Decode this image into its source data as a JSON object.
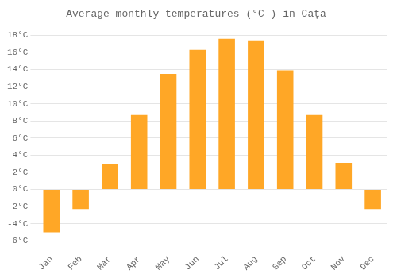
{
  "chart_data": {
    "type": "bar",
    "title": "Average monthly temperatures (°C ) in Cața",
    "categories": [
      "Jan",
      "Feb",
      "Mar",
      "Apr",
      "May",
      "Jun",
      "Jul",
      "Aug",
      "Sep",
      "Oct",
      "Nov",
      "Dec"
    ],
    "values": [
      -5.0,
      -2.3,
      3.0,
      8.7,
      13.5,
      16.3,
      17.6,
      17.4,
      13.9,
      8.7,
      3.1,
      -2.3
    ],
    "color": "#FFA726",
    "ylim": [
      -6.5,
      19.0
    ],
    "yticks": [
      {
        "value": -6,
        "label": "-6°C"
      },
      {
        "value": -4,
        "label": "-4°C"
      },
      {
        "value": -2,
        "label": "-2°C"
      },
      {
        "value": 0,
        "label": "0°C"
      },
      {
        "value": 2,
        "label": "2°C"
      },
      {
        "value": 4,
        "label": "4°C"
      },
      {
        "value": 6,
        "label": "6°C"
      },
      {
        "value": 8,
        "label": "8°C"
      },
      {
        "value": 10,
        "label": "10°C"
      },
      {
        "value": 12,
        "label": "12°C"
      },
      {
        "value": 14,
        "label": "14°C"
      },
      {
        "value": 16,
        "label": "16°C"
      },
      {
        "value": 18,
        "label": "18°C"
      }
    ],
    "grid": true
  }
}
